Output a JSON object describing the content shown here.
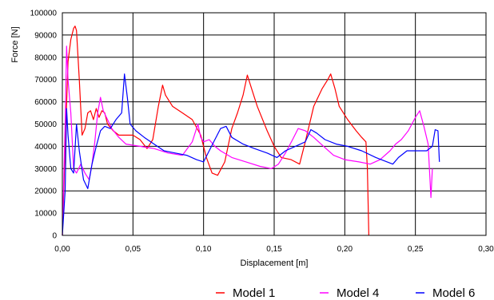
{
  "chart_data": {
    "type": "line",
    "title": "",
    "xlabel": "Displacement [m]",
    "ylabel": "Force [N]",
    "xlim": [
      0,
      0.3
    ],
    "ylim": [
      0,
      100000
    ],
    "x_ticks": [
      0,
      0.05,
      0.1,
      0.15,
      0.2,
      0.25,
      0.3
    ],
    "x_tick_labels": [
      "0,00",
      "0,05",
      "0,10",
      "0,15",
      "0,20",
      "0,25",
      "0,30"
    ],
    "y_ticks": [
      0,
      10000,
      20000,
      30000,
      40000,
      50000,
      60000,
      70000,
      80000,
      90000,
      100000
    ],
    "y_tick_labels": [
      "0",
      "10000",
      "20000",
      "30000",
      "40000",
      "50000",
      "60000",
      "70000",
      "80000",
      "90000",
      "100000"
    ],
    "grid": true,
    "legend_position": "bottom-right",
    "series": [
      {
        "name": "Model 1",
        "color": "#ff0000",
        "points": [
          [
            0.0,
            0
          ],
          [
            0.002,
            40000
          ],
          [
            0.004,
            78000
          ],
          [
            0.006,
            88000
          ],
          [
            0.008,
            93000
          ],
          [
            0.009,
            94000
          ],
          [
            0.01,
            92000
          ],
          [
            0.012,
            70000
          ],
          [
            0.014,
            45000
          ],
          [
            0.016,
            48000
          ],
          [
            0.018,
            55000
          ],
          [
            0.02,
            56000
          ],
          [
            0.022,
            52000
          ],
          [
            0.024,
            57000
          ],
          [
            0.026,
            53000
          ],
          [
            0.028,
            56000
          ],
          [
            0.03,
            55000
          ],
          [
            0.032,
            50000
          ],
          [
            0.036,
            47000
          ],
          [
            0.04,
            45000
          ],
          [
            0.045,
            45000
          ],
          [
            0.05,
            45000
          ],
          [
            0.055,
            43000
          ],
          [
            0.06,
            39000
          ],
          [
            0.064,
            43000
          ],
          [
            0.068,
            58000
          ],
          [
            0.071,
            67500
          ],
          [
            0.073,
            63000
          ],
          [
            0.078,
            58000
          ],
          [
            0.085,
            55000
          ],
          [
            0.092,
            52000
          ],
          [
            0.098,
            45000
          ],
          [
            0.102,
            35000
          ],
          [
            0.106,
            28000
          ],
          [
            0.11,
            27000
          ],
          [
            0.115,
            33000
          ],
          [
            0.12,
            48000
          ],
          [
            0.124,
            55000
          ],
          [
            0.128,
            63000
          ],
          [
            0.131,
            72000
          ],
          [
            0.134,
            66000
          ],
          [
            0.138,
            58000
          ],
          [
            0.145,
            47000
          ],
          [
            0.15,
            40000
          ],
          [
            0.155,
            35000
          ],
          [
            0.162,
            34000
          ],
          [
            0.168,
            32000
          ],
          [
            0.172,
            42000
          ],
          [
            0.178,
            58000
          ],
          [
            0.184,
            66000
          ],
          [
            0.188,
            70000
          ],
          [
            0.19,
            72500
          ],
          [
            0.193,
            66000
          ],
          [
            0.196,
            58000
          ],
          [
            0.202,
            52000
          ],
          [
            0.208,
            47000
          ],
          [
            0.212,
            44000
          ],
          [
            0.215,
            42000
          ],
          [
            0.216,
            30000
          ],
          [
            0.217,
            0
          ]
        ]
      },
      {
        "name": "Model 4",
        "color": "#ff00ff",
        "points": [
          [
            0.0,
            0
          ],
          [
            0.002,
            50000
          ],
          [
            0.003,
            85000
          ],
          [
            0.004,
            70000
          ],
          [
            0.006,
            55000
          ],
          [
            0.008,
            30000
          ],
          [
            0.01,
            28000
          ],
          [
            0.013,
            32000
          ],
          [
            0.016,
            28000
          ],
          [
            0.019,
            25000
          ],
          [
            0.021,
            32000
          ],
          [
            0.023,
            42000
          ],
          [
            0.025,
            55000
          ],
          [
            0.027,
            62000
          ],
          [
            0.029,
            56000
          ],
          [
            0.032,
            52000
          ],
          [
            0.035,
            48000
          ],
          [
            0.04,
            44000
          ],
          [
            0.045,
            41000
          ],
          [
            0.055,
            40000
          ],
          [
            0.065,
            39000
          ],
          [
            0.075,
            37000
          ],
          [
            0.085,
            36000
          ],
          [
            0.092,
            42000
          ],
          [
            0.096,
            50000
          ],
          [
            0.098,
            44000
          ],
          [
            0.1,
            42000
          ],
          [
            0.104,
            43000
          ],
          [
            0.108,
            40000
          ],
          [
            0.112,
            38000
          ],
          [
            0.12,
            35000
          ],
          [
            0.13,
            33000
          ],
          [
            0.14,
            31000
          ],
          [
            0.148,
            30000
          ],
          [
            0.153,
            32000
          ],
          [
            0.158,
            37000
          ],
          [
            0.163,
            43000
          ],
          [
            0.167,
            48000
          ],
          [
            0.172,
            47000
          ],
          [
            0.178,
            44000
          ],
          [
            0.185,
            40000
          ],
          [
            0.192,
            36000
          ],
          [
            0.2,
            34000
          ],
          [
            0.21,
            33000
          ],
          [
            0.218,
            32000
          ],
          [
            0.225,
            34000
          ],
          [
            0.232,
            38000
          ],
          [
            0.236,
            41000
          ],
          [
            0.24,
            43000
          ],
          [
            0.245,
            47000
          ],
          [
            0.25,
            53000
          ],
          [
            0.253,
            56000
          ],
          [
            0.256,
            49000
          ],
          [
            0.259,
            41000
          ],
          [
            0.261,
            17000
          ],
          [
            0.262,
            30000
          ]
        ]
      },
      {
        "name": "Model 6",
        "color": "#0000ff",
        "points": [
          [
            0.0,
            0
          ],
          [
            0.002,
            20000
          ],
          [
            0.003,
            57000
          ],
          [
            0.004,
            45000
          ],
          [
            0.006,
            30000
          ],
          [
            0.008,
            28000
          ],
          [
            0.01,
            50000
          ],
          [
            0.012,
            38000
          ],
          [
            0.015,
            25000
          ],
          [
            0.018,
            21000
          ],
          [
            0.021,
            32000
          ],
          [
            0.024,
            40000
          ],
          [
            0.027,
            47000
          ],
          [
            0.03,
            49000
          ],
          [
            0.034,
            48000
          ],
          [
            0.038,
            52000
          ],
          [
            0.042,
            55000
          ],
          [
            0.044,
            72500
          ],
          [
            0.046,
            62000
          ],
          [
            0.048,
            50000
          ],
          [
            0.052,
            47000
          ],
          [
            0.058,
            44000
          ],
          [
            0.065,
            41000
          ],
          [
            0.072,
            38000
          ],
          [
            0.08,
            37000
          ],
          [
            0.088,
            36000
          ],
          [
            0.095,
            34000
          ],
          [
            0.1,
            33000
          ],
          [
            0.104,
            38000
          ],
          [
            0.108,
            43000
          ],
          [
            0.112,
            48000
          ],
          [
            0.116,
            49000
          ],
          [
            0.12,
            44000
          ],
          [
            0.128,
            41000
          ],
          [
            0.136,
            39000
          ],
          [
            0.145,
            37000
          ],
          [
            0.152,
            35000
          ],
          [
            0.158,
            38000
          ],
          [
            0.165,
            40000
          ],
          [
            0.172,
            42000
          ],
          [
            0.176,
            47500
          ],
          [
            0.18,
            46000
          ],
          [
            0.186,
            43000
          ],
          [
            0.194,
            41000
          ],
          [
            0.202,
            40000
          ],
          [
            0.212,
            38000
          ],
          [
            0.222,
            35000
          ],
          [
            0.23,
            33000
          ],
          [
            0.234,
            32000
          ],
          [
            0.238,
            35000
          ],
          [
            0.244,
            38000
          ],
          [
            0.252,
            38000
          ],
          [
            0.258,
            38000
          ],
          [
            0.262,
            40000
          ],
          [
            0.264,
            47500
          ],
          [
            0.266,
            47000
          ],
          [
            0.267,
            33000
          ]
        ]
      }
    ]
  }
}
